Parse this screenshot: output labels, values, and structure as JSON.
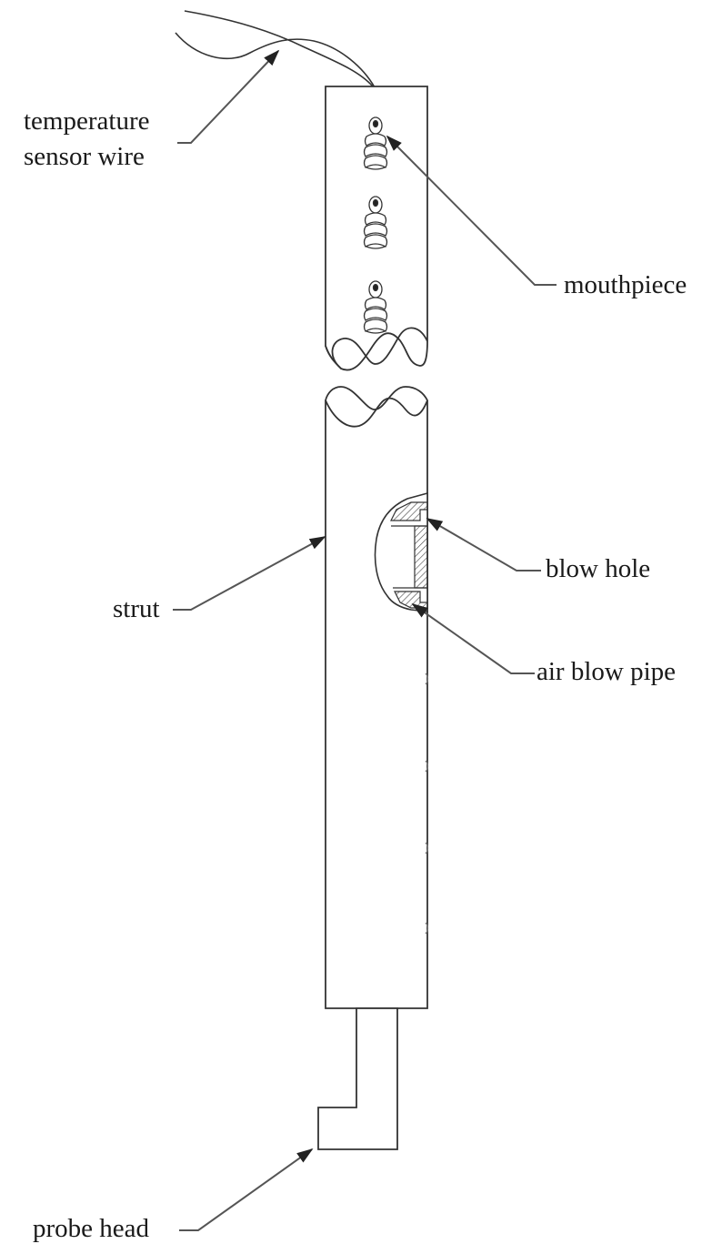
{
  "labels": {
    "temperature_sensor_wire": [
      "temperature",
      "sensor wire"
    ],
    "mouthpiece": "mouthpiece",
    "blow_hole": "blow hole",
    "strut": "strut",
    "air_blow_pipe": "air blow pipe",
    "probe_head": "probe head"
  },
  "colors": {
    "line": "#333333",
    "leader": "#555555",
    "hatch": "#444444"
  }
}
